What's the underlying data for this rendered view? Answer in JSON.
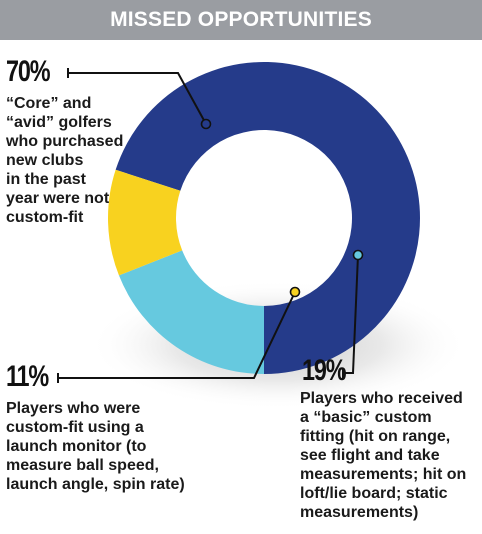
{
  "header": {
    "title": "MISSED OPPORTUNITIES",
    "background_color": "#9a9da2"
  },
  "chart_data": {
    "type": "pie",
    "style": "donut",
    "title": "MISSED OPPORTUNITIES",
    "grid": false,
    "legend": "none",
    "slices": [
      {
        "value": 70,
        "label": "70%",
        "description": "“Core” and “avid” golfers who purchased new clubs in the past year were not custom-fit",
        "color": "#253b8a"
      },
      {
        "value": 19,
        "label": "19%",
        "description": "Players who received a “basic” custom fitting (hit on range, see flight and take measurements; hit on loft/lie board; static measurements)",
        "color": "#66c9df"
      },
      {
        "value": 11,
        "label": "11%",
        "description": "Players who were custom-fit using a launch monitor (to measure ball speed, launch angle, spin rate)",
        "color": "#f8d21f"
      }
    ]
  },
  "annotations": {
    "core": {
      "pct": "70%",
      "lines": [
        "“Core” and",
        "“avid” golfers",
        "who purchased",
        "new clubs",
        "in the past",
        "year were not",
        "custom-fit"
      ]
    },
    "basic": {
      "pct": "19%",
      "lines": [
        "Players who received",
        "a “basic” custom",
        "fitting (hit on range,",
        "see flight and take",
        "measurements; hit on",
        "loft/lie board; static",
        "measurements)"
      ]
    },
    "launch": {
      "pct": "11%",
      "lines": [
        "Players who were",
        "custom-fit using a",
        "launch monitor (to",
        "measure ball speed,",
        "launch angle, spin rate)"
      ]
    }
  }
}
